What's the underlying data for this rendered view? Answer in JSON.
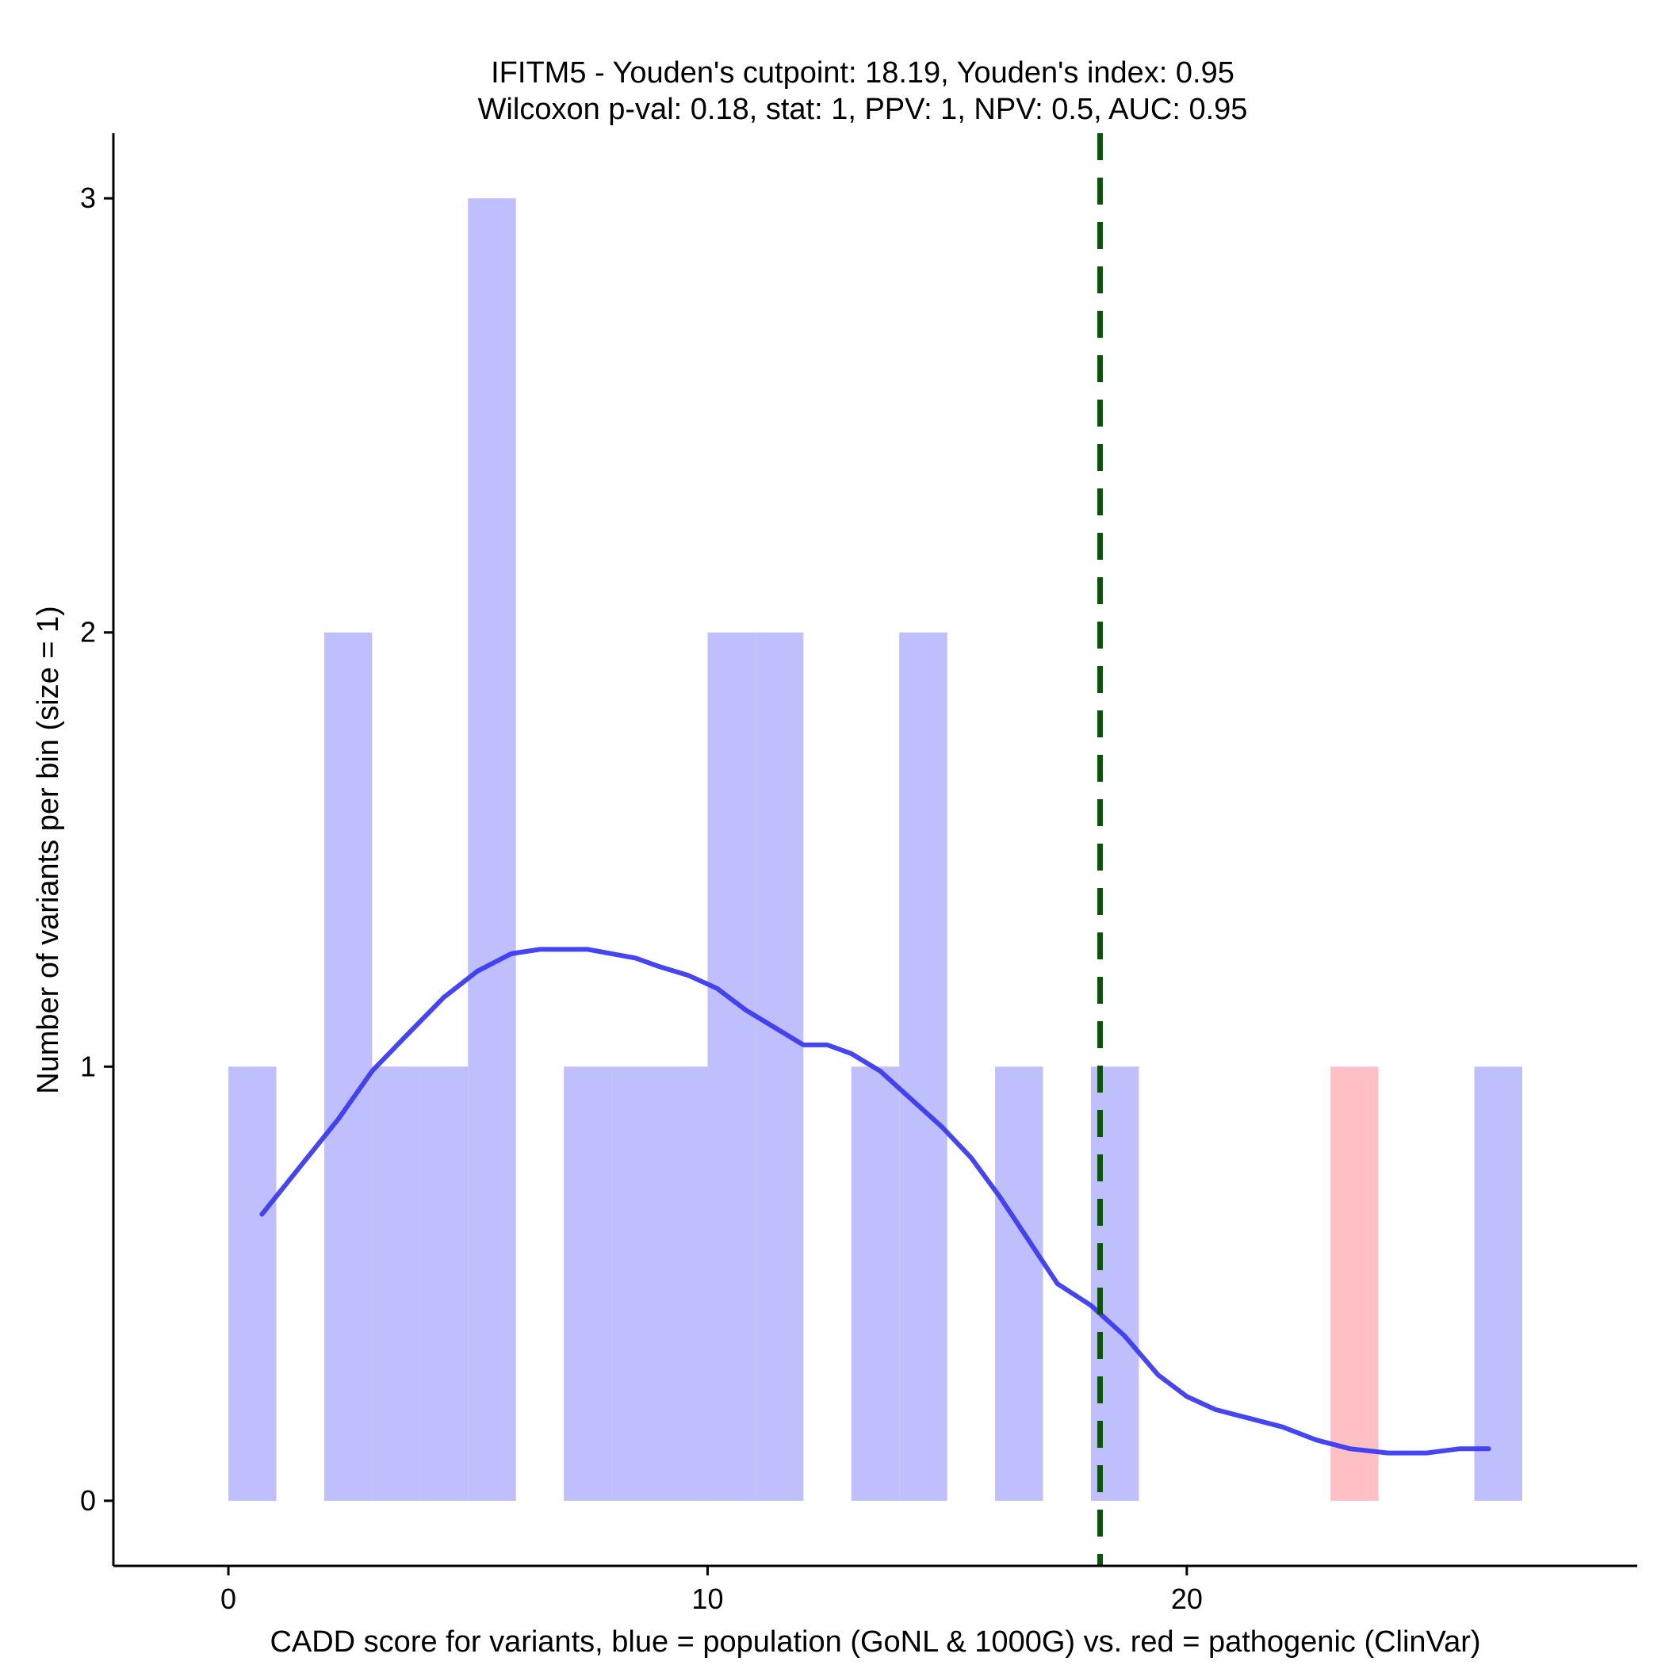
{
  "chart_data": {
    "type": "bar",
    "title_line1": "IFITM5 - Youden's cutpoint: 18.19, Youden's index: 0.95",
    "title_line2": "Wilcoxon p-val: 0.18, stat: 1, PPV: 1, NPV: 0.5, AUC: 0.95",
    "xlabel": "CADD score for variants, blue = population (GoNL & 1000G) vs. red = pathogenic (ClinVar)",
    "ylabel": "Number of variants per bin (size = 1)",
    "xlim": [
      -2.4,
      29.4
    ],
    "ylim": [
      -0.15,
      3.15
    ],
    "x_ticks": [
      0,
      10,
      20
    ],
    "y_ticks": [
      0,
      1,
      2,
      3
    ],
    "bin_width": 1,
    "colors": {
      "population": "#bfbffe",
      "pathogenic": "#fec0c4",
      "density": "#3b3bf2",
      "cutpoint": "#0b520b"
    },
    "series": [
      {
        "group": "population",
        "bins": [
          {
            "start": 0,
            "count": 1
          },
          {
            "start": 2,
            "count": 2
          },
          {
            "start": 3,
            "count": 1
          },
          {
            "start": 4,
            "count": 1
          },
          {
            "start": 5,
            "count": 3
          },
          {
            "start": 7,
            "count": 1
          },
          {
            "start": 8,
            "count": 1
          },
          {
            "start": 9,
            "count": 1
          },
          {
            "start": 10,
            "count": 2
          },
          {
            "start": 11,
            "count": 2
          },
          {
            "start": 13,
            "count": 1
          },
          {
            "start": 14,
            "count": 2
          },
          {
            "start": 16,
            "count": 1
          },
          {
            "start": 18,
            "count": 1
          },
          {
            "start": 26,
            "count": 1
          }
        ]
      },
      {
        "group": "pathogenic",
        "bins": [
          {
            "start": 23,
            "count": 1
          }
        ]
      }
    ],
    "density_curve": {
      "x": [
        0.7,
        1.5,
        2.3,
        3.0,
        3.7,
        4.5,
        5.2,
        5.9,
        6.5,
        7.0,
        7.5,
        8.0,
        8.5,
        9.0,
        9.6,
        10.2,
        10.8,
        11.4,
        12.0,
        12.5,
        13.0,
        13.6,
        14.2,
        14.9,
        15.5,
        16.1,
        16.7,
        17.3,
        18.0,
        18.7,
        19.4,
        20.0,
        20.6,
        21.3,
        22.0,
        22.7,
        23.4,
        24.2,
        25.0,
        25.7,
        26.3
      ],
      "y": [
        0.66,
        0.77,
        0.88,
        0.99,
        1.07,
        1.16,
        1.22,
        1.26,
        1.27,
        1.27,
        1.27,
        1.26,
        1.25,
        1.23,
        1.21,
        1.18,
        1.13,
        1.09,
        1.05,
        1.05,
        1.03,
        0.99,
        0.93,
        0.86,
        0.79,
        0.7,
        0.6,
        0.5,
        0.45,
        0.38,
        0.29,
        0.24,
        0.21,
        0.19,
        0.17,
        0.14,
        0.12,
        0.11,
        0.11,
        0.12,
        0.12
      ]
    },
    "cutpoint": 18.19
  }
}
